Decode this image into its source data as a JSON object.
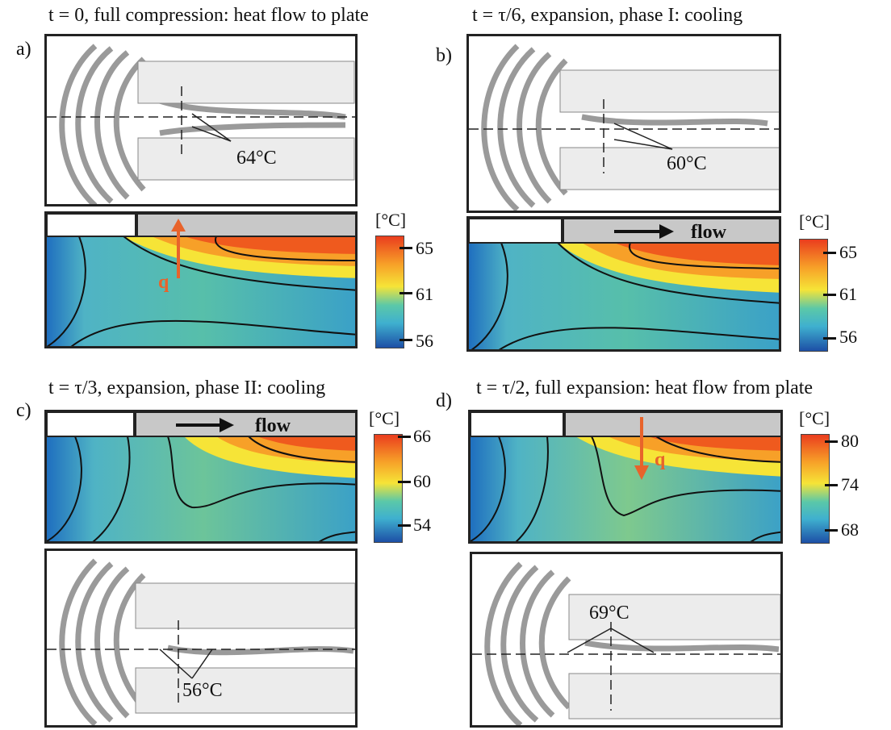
{
  "panels": [
    {
      "letter": "a)",
      "title": "t = 0, full compression: heat flow to plate",
      "annotation": "64°C",
      "unit": "[°C]",
      "ticks": [
        "65",
        "61",
        "56"
      ],
      "arrow_label": "q",
      "flow_label": ""
    },
    {
      "letter": "b)",
      "title": "t = τ/6, expansion, phase I: cooling",
      "annotation": "60°C",
      "unit": "[°C]",
      "ticks": [
        "65",
        "61",
        "56"
      ],
      "arrow_label": "",
      "flow_label": "flow"
    },
    {
      "letter": "c)",
      "title": "t = τ/3, expansion, phase II: cooling",
      "annotation": "56°C",
      "unit": "[°C]",
      "ticks": [
        "66",
        "60",
        "54"
      ],
      "arrow_label": "",
      "flow_label": "flow"
    },
    {
      "letter": "d)",
      "title": "t = τ/2, full expansion: heat flow from plate",
      "annotation": "69°C",
      "unit": "[°C]",
      "ticks": [
        "80",
        "74",
        "68"
      ],
      "arrow_label": "q",
      "flow_label": ""
    }
  ],
  "colors": {
    "accent": "#e8632b",
    "plate": "#c8c8c8"
  }
}
